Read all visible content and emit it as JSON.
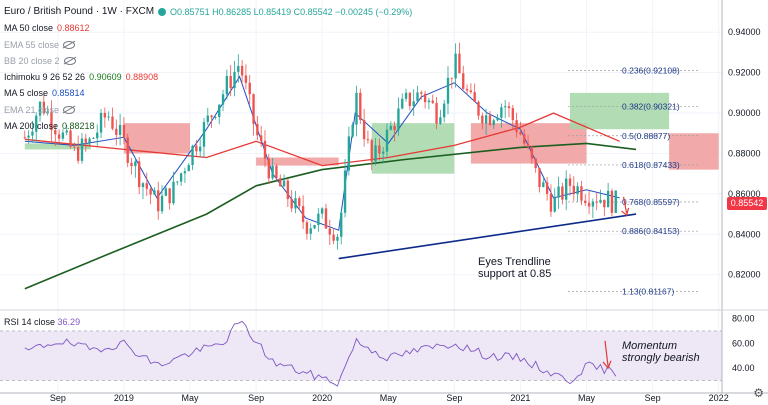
{
  "header": {
    "symbol": "Euro / British Pound · 1W · FXCM",
    "ohlc": "O0.85751 H0.86285 L0.85419 C0.85542 −0.00245 (−0.29%)"
  },
  "legend": [
    {
      "label": "MA 50 close",
      "value": "0.88612",
      "value_color": "#e53935",
      "hidden": false
    },
    {
      "label": "EMA 55 close",
      "value": "",
      "hidden": true
    },
    {
      "label": "BB 20 close 2",
      "value": "",
      "hidden": true
    },
    {
      "label": "Ichimoku 9 26 52 26",
      "value": "0.90609",
      "value2": "0.88908",
      "value_color": "#1b7b1b",
      "value2_color": "#e53935",
      "hidden": false
    },
    {
      "label": "MA 5 close",
      "value": "0.85814",
      "value_color": "#1e4fc2",
      "hidden": false
    },
    {
      "label": "EMA 21 close",
      "value": "",
      "hidden": true
    },
    {
      "label": "MA 200 close",
      "value": "0.88218",
      "value_color": "#1b5e20",
      "hidden": false
    }
  ],
  "rsi_label": "RSI 14 close",
  "rsi_value": "36.29",
  "current_price": "0.85542",
  "annotations": {
    "trendline_note": [
      "Eyes Trendline",
      "support at 0.85"
    ],
    "rsi_note": [
      "Momentum",
      "strongly bearish"
    ]
  },
  "colors": {
    "up": "#26a69a",
    "down": "#ef5350",
    "ma50": "#e53935",
    "ma200": "#1b5e20",
    "ma5": "#1e4fc2",
    "cloud_bull": "#a5d6a7",
    "cloud_bear": "#ef9a9a",
    "trendline": "#0d2a8a",
    "rsi": "#7e57c2",
    "rsi_band": "#ede7f6"
  },
  "chart_data": {
    "type": "candlestick",
    "timeframe": "1W",
    "y_axis": {
      "min": 0.805,
      "max": 0.952,
      "ticks": [
        0.82,
        0.84,
        0.86,
        0.88,
        0.9,
        0.92,
        0.94
      ]
    },
    "x_axis": {
      "start": "2018-07",
      "end": "2022-01",
      "ticks": [
        {
          "label": "Sep",
          "date": "2018-09"
        },
        {
          "label": "2019",
          "date": "2019-01"
        },
        {
          "label": "May",
          "date": "2019-05"
        },
        {
          "label": "Sep",
          "date": "2019-09"
        },
        {
          "label": "2020",
          "date": "2020-01"
        },
        {
          "label": "May",
          "date": "2020-05"
        },
        {
          "label": "Sep",
          "date": "2020-09"
        },
        {
          "label": "2021",
          "date": "2021-01"
        },
        {
          "label": "May",
          "date": "2021-05"
        },
        {
          "label": "Sep",
          "date": "2021-09"
        },
        {
          "label": "2022",
          "date": "2022-01"
        }
      ]
    },
    "price_path": [
      [
        "2018-07",
        0.888
      ],
      [
        "2018-08",
        0.905
      ],
      [
        "2018-09",
        0.892
      ],
      [
        "2018-10",
        0.88
      ],
      [
        "2018-11",
        0.886
      ],
      [
        "2018-12",
        0.9
      ],
      [
        "2019-01",
        0.885
      ],
      [
        "2019-02",
        0.868
      ],
      [
        "2019-03",
        0.855
      ],
      [
        "2019-04",
        0.862
      ],
      [
        "2019-05",
        0.88
      ],
      [
        "2019-06",
        0.895
      ],
      [
        "2019-07",
        0.91
      ],
      [
        "2019-08",
        0.925
      ],
      [
        "2019-09",
        0.89
      ],
      [
        "2019-10",
        0.868
      ],
      [
        "2019-11",
        0.858
      ],
      [
        "2019-12",
        0.845
      ],
      [
        "2020-01",
        0.848
      ],
      [
        "2020-02",
        0.84
      ],
      [
        "2020-03",
        0.91
      ],
      [
        "2020-04",
        0.875
      ],
      [
        "2020-05",
        0.89
      ],
      [
        "2020-06",
        0.905
      ],
      [
        "2020-07",
        0.91
      ],
      [
        "2020-08",
        0.9
      ],
      [
        "2020-09",
        0.925
      ],
      [
        "2020-10",
        0.905
      ],
      [
        "2020-11",
        0.898
      ],
      [
        "2020-12",
        0.905
      ],
      [
        "2021-01",
        0.89
      ],
      [
        "2021-02",
        0.868
      ],
      [
        "2021-03",
        0.855
      ],
      [
        "2021-04",
        0.865
      ],
      [
        "2021-05",
        0.86
      ],
      [
        "2021-06",
        0.858
      ],
      [
        "2021-07",
        0.855
      ]
    ],
    "ma5": [
      [
        "2018-07",
        0.886
      ],
      [
        "2018-10",
        0.884
      ],
      [
        "2019-01",
        0.888
      ],
      [
        "2019-03",
        0.858
      ],
      [
        "2019-06",
        0.892
      ],
      [
        "2019-08",
        0.918
      ],
      [
        "2019-10",
        0.87
      ],
      [
        "2019-12",
        0.848
      ],
      [
        "2020-02",
        0.842
      ],
      [
        "2020-03",
        0.9
      ],
      [
        "2020-05",
        0.885
      ],
      [
        "2020-07",
        0.908
      ],
      [
        "2020-09",
        0.915
      ],
      [
        "2020-11",
        0.9
      ],
      [
        "2021-01",
        0.892
      ],
      [
        "2021-03",
        0.858
      ],
      [
        "2021-05",
        0.862
      ],
      [
        "2021-07",
        0.858
      ]
    ],
    "ma50": [
      [
        "2018-07",
        0.887
      ],
      [
        "2019-01",
        0.882
      ],
      [
        "2019-06",
        0.878
      ],
      [
        "2019-09",
        0.886
      ],
      [
        "2020-01",
        0.874
      ],
      [
        "2020-05",
        0.878
      ],
      [
        "2020-09",
        0.884
      ],
      [
        "2021-01",
        0.893
      ],
      [
        "2021-03",
        0.9
      ],
      [
        "2021-07",
        0.886
      ]
    ],
    "ma200": [
      [
        "2018-07",
        0.813
      ],
      [
        "2018-12",
        0.83
      ],
      [
        "2019-06",
        0.85
      ],
      [
        "2019-09",
        0.864
      ],
      [
        "2020-01",
        0.872
      ],
      [
        "2020-06",
        0.877
      ],
      [
        "2021-01",
        0.883
      ],
      [
        "2021-05",
        0.885
      ],
      [
        "2021-08",
        0.882
      ]
    ],
    "ichimoku_cloud": [
      {
        "from": "2018-07",
        "to": "2018-11",
        "span_a": 0.885,
        "span_b": 0.882,
        "bias": "bull"
      },
      {
        "from": "2019-01",
        "to": "2019-05",
        "span_a": 0.895,
        "span_b": 0.88,
        "bias": "bear"
      },
      {
        "from": "2019-09",
        "to": "2020-02",
        "span_a": 0.878,
        "span_b": 0.874,
        "bias": "bear"
      },
      {
        "from": "2020-04",
        "to": "2020-09",
        "span_a": 0.895,
        "span_b": 0.87,
        "bias": "bull"
      },
      {
        "from": "2020-10",
        "to": "2021-05",
        "span_a": 0.895,
        "span_b": 0.875,
        "bias": "bear"
      },
      {
        "from": "2021-04",
        "to": "2021-10",
        "span_a": 0.91,
        "span_b": 0.892,
        "bias": "bull"
      },
      {
        "from": "2021-10",
        "to": "2022-01",
        "span_a": 0.89,
        "span_b": 0.872,
        "bias": "bear"
      }
    ],
    "fibonacci": [
      {
        "label": "0.236(0.92108)",
        "value": 0.92108
      },
      {
        "label": "0.382(0.90321)",
        "value": 0.90321
      },
      {
        "label": "0.5(0.88877)",
        "value": 0.88877
      },
      {
        "label": "0.618(0.87433)",
        "value": 0.87433
      },
      {
        "label": "0.768(0.85597)",
        "value": 0.85597
      },
      {
        "label": "0.886(0.84153)",
        "value": 0.84153
      },
      {
        "label": "1.13(0.81167)",
        "value": 0.81167
      }
    ],
    "trendline": {
      "from": [
        "2020-02",
        0.828
      ],
      "to": [
        "2021-08",
        0.85
      ]
    },
    "rsi": {
      "ticks": [
        40,
        60,
        80
      ],
      "range": [
        24,
        82
      ],
      "band": [
        30,
        70
      ],
      "path": [
        [
          "2018-07",
          53
        ],
        [
          "2018-09",
          62
        ],
        [
          "2018-11",
          55
        ],
        [
          "2019-01",
          60
        ],
        [
          "2019-03",
          42
        ],
        [
          "2019-05",
          52
        ],
        [
          "2019-07",
          60
        ],
        [
          "2019-08",
          78
        ],
        [
          "2019-10",
          45
        ],
        [
          "2019-12",
          36
        ],
        [
          "2020-02",
          28
        ],
        [
          "2020-03",
          62
        ],
        [
          "2020-05",
          48
        ],
        [
          "2020-07",
          55
        ],
        [
          "2020-09",
          60
        ],
        [
          "2020-11",
          50
        ],
        [
          "2021-01",
          48
        ],
        [
          "2021-03",
          35
        ],
        [
          "2021-04",
          30
        ],
        [
          "2021-05",
          42
        ],
        [
          "2021-07",
          36.29
        ]
      ]
    }
  }
}
